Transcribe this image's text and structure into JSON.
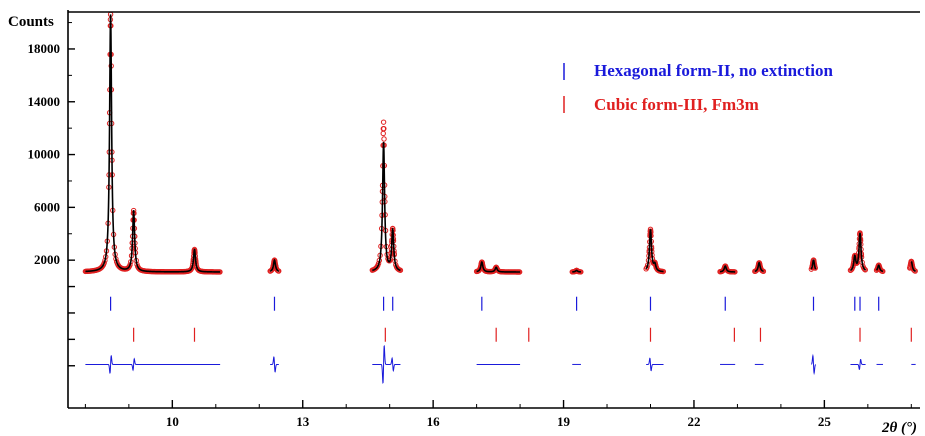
{
  "chart_data": {
    "type": "line",
    "ylabel": "Counts",
    "xlabel": "2θ (°)",
    "xlim": [
      7.6,
      27.2
    ],
    "ylim": [
      -9200,
      20800
    ],
    "x_ticks": [
      10,
      13,
      16,
      19,
      22,
      25
    ],
    "x_tick_labels": [
      "10",
      "13",
      "16",
      "19",
      "22",
      "25"
    ],
    "y_ticks": [
      -6000,
      -4000,
      -2000,
      0,
      2000,
      6000,
      10000,
      14000,
      18000
    ],
    "y_tick_labels": [
      "",
      "",
      "",
      "",
      "2000",
      "6000",
      "10000",
      "14000",
      "18000"
    ],
    "segments": [
      [
        8.0,
        11.1
      ],
      [
        12.25,
        12.45
      ],
      [
        14.6,
        15.25
      ],
      [
        17.0,
        18.0
      ],
      [
        19.2,
        19.4
      ],
      [
        20.9,
        21.3
      ],
      [
        22.6,
        22.95
      ],
      [
        23.4,
        23.6
      ],
      [
        24.7,
        24.8
      ],
      [
        25.6,
        25.95
      ],
      [
        26.2,
        26.35
      ],
      [
        27.0,
        27.1
      ]
    ],
    "baseline": 1100,
    "peaks": [
      {
        "x": 8.58,
        "height": 19500,
        "obs_over": 0
      },
      {
        "x": 9.11,
        "height": 4600,
        "obs_over": 0
      },
      {
        "x": 10.51,
        "height": 1700,
        "obs_over": 0
      },
      {
        "x": 12.35,
        "height": 900,
        "obs_over": 0
      },
      {
        "x": 14.86,
        "height": 9800,
        "obs_over": 1500
      },
      {
        "x": 15.07,
        "height": 3100,
        "obs_over": 0
      },
      {
        "x": 17.12,
        "height": 750,
        "obs_over": 0
      },
      {
        "x": 17.45,
        "height": 350,
        "obs_over": 0
      },
      {
        "x": 19.3,
        "height": 120,
        "obs_over": 0
      },
      {
        "x": 21.0,
        "height": 3200,
        "obs_over": 0
      },
      {
        "x": 21.1,
        "height": 500,
        "obs_over": 0
      },
      {
        "x": 22.72,
        "height": 450,
        "obs_over": 0
      },
      {
        "x": 23.5,
        "height": 700,
        "obs_over": 0
      },
      {
        "x": 24.75,
        "height": 900,
        "obs_over": 0
      },
      {
        "x": 25.7,
        "height": 1100,
        "obs_over": 0
      },
      {
        "x": 25.82,
        "height": 2900,
        "obs_over": 0
      },
      {
        "x": 26.25,
        "height": 500,
        "obs_over": 0
      },
      {
        "x": 27.0,
        "height": 800,
        "obs_over": 0
      }
    ],
    "series": [
      {
        "name": "Hexagonal form-II, no extinction",
        "role": "tick-marks",
        "color": "#1a1adb",
        "y_center": -1300,
        "x": [
          8.58,
          12.35,
          14.86,
          15.07,
          17.12,
          19.3,
          21.0,
          22.72,
          24.75,
          25.7,
          25.82,
          26.25
        ]
      },
      {
        "name": "Cubic form-III, Fm3m",
        "role": "tick-marks",
        "color": "#e02020",
        "y_center": -3650,
        "x": [
          9.11,
          10.51,
          14.9,
          17.45,
          18.2,
          21.0,
          22.93,
          23.53,
          25.82,
          27.0
        ]
      }
    ],
    "difference": {
      "color": "#1a1adb",
      "y_center": -5900,
      "spikes": [
        {
          "x": 8.58,
          "amp": 700
        },
        {
          "x": 9.11,
          "amp": 450
        },
        {
          "x": 12.35,
          "amp": -600
        },
        {
          "x": 14.86,
          "amp": 1500
        },
        {
          "x": 15.07,
          "amp": -500
        },
        {
          "x": 21.0,
          "amp": -500
        },
        {
          "x": 24.75,
          "amp": -700
        },
        {
          "x": 25.82,
          "amp": 400
        }
      ]
    },
    "observed_color": "#e02020",
    "calculated_color": "#000000",
    "legend_position": "top-right"
  }
}
